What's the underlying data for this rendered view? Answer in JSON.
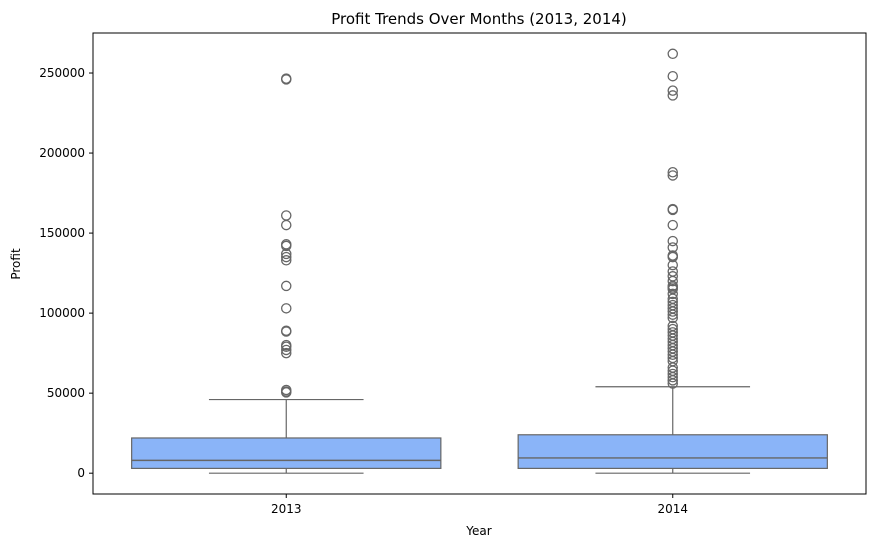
{
  "chart_data": {
    "type": "box",
    "title": "Profit Trends Over Months (2013, 2014)",
    "xlabel": "Year",
    "ylabel": "Profit",
    "ylim": [
      -13000,
      275000
    ],
    "yticks": [
      0,
      50000,
      100000,
      150000,
      200000,
      250000
    ],
    "ytick_labels": [
      "0",
      "50000",
      "100000",
      "150000",
      "200000",
      "250000"
    ],
    "grid": false,
    "legend": "none",
    "categories": [
      "2013",
      "2014"
    ],
    "box_color": "#8AB4F8",
    "line_color": "#666666",
    "boxes": [
      {
        "category": "2013",
        "whisker_low": 0,
        "q1": 3000,
        "median": 8000,
        "q3": 22000,
        "whisker_high": 46000,
        "outliers": [
          246000,
          246500,
          161000,
          155000,
          143000,
          142000,
          137000,
          135000,
          133000,
          117000,
          103000,
          89000,
          88500,
          80000,
          79000,
          77000,
          75000,
          52000,
          51000,
          50500
        ]
      },
      {
        "category": "2014",
        "whisker_low": 0,
        "q1": 3000,
        "median": 9500,
        "q3": 24000,
        "whisker_high": 54000,
        "outliers": [
          262000,
          248000,
          239000,
          236000,
          188000,
          186000,
          165000,
          164500,
          155000,
          145000,
          141000,
          136000,
          135000,
          130000,
          126000,
          123000,
          120000,
          117000,
          116000,
          115000,
          112000,
          109000,
          107000,
          105000,
          103000,
          101000,
          99000,
          97000,
          92000,
          90000,
          88000,
          86000,
          84000,
          82000,
          80000,
          78000,
          76000,
          74000,
          72000,
          70000,
          66000,
          64000,
          62000,
          60000,
          58000,
          56000
        ]
      }
    ]
  }
}
